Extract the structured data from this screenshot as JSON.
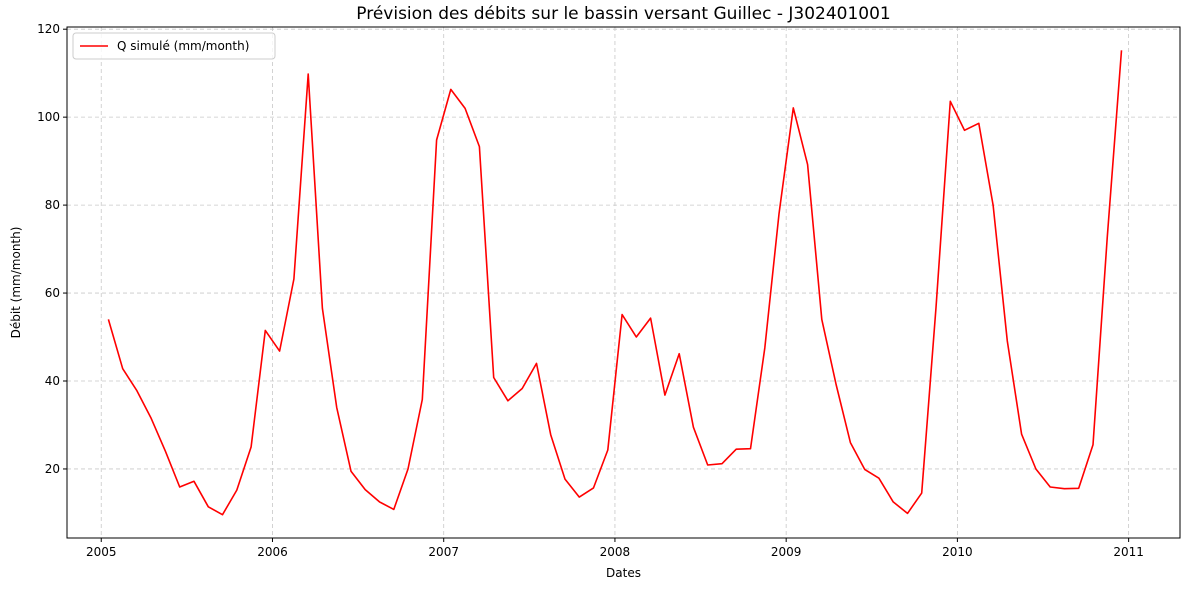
{
  "chart_data": {
    "type": "line",
    "title": "Prévision des débits sur le bassin versant Guillec - J302401001",
    "xlabel": "Dates",
    "ylabel": "Débit (mm/month)",
    "xlim": [
      2004.8,
      2011.3
    ],
    "ylim": [
      4.3,
      120.5
    ],
    "xticks": [
      2005,
      2006,
      2007,
      2008,
      2009,
      2010,
      2011
    ],
    "xtick_labels": [
      "2005",
      "2006",
      "2007",
      "2008",
      "2009",
      "2010",
      "2011"
    ],
    "yticks": [
      20,
      40,
      60,
      80,
      100,
      120
    ],
    "ytick_labels": [
      "20",
      "40",
      "60",
      "80",
      "100",
      "120"
    ],
    "grid": true,
    "legend_position": "top-left",
    "colors": {
      "series": "#ff0000",
      "grid": "#c8c8c8"
    },
    "series": [
      {
        "name": "Q simulé (mm/month)",
        "x": [
          "2005-01",
          "2005-02",
          "2005-03",
          "2005-04",
          "2005-05",
          "2005-06",
          "2005-07",
          "2005-08",
          "2005-09",
          "2005-10",
          "2005-11",
          "2005-12",
          "2006-01",
          "2006-02",
          "2006-03",
          "2006-04",
          "2006-05",
          "2006-06",
          "2006-07",
          "2006-08",
          "2006-09",
          "2006-10",
          "2006-11",
          "2006-12",
          "2007-01",
          "2007-02",
          "2007-03",
          "2007-04",
          "2007-05",
          "2007-06",
          "2007-07",
          "2007-08",
          "2007-09",
          "2007-10",
          "2007-11",
          "2007-12",
          "2008-01",
          "2008-02",
          "2008-03",
          "2008-04",
          "2008-05",
          "2008-06",
          "2008-07",
          "2008-08",
          "2008-09",
          "2008-10",
          "2008-11",
          "2008-12",
          "2009-01",
          "2009-02",
          "2009-03",
          "2009-04",
          "2009-05",
          "2009-06",
          "2009-07",
          "2009-08",
          "2009-09",
          "2009-10",
          "2009-11",
          "2009-12",
          "2010-01",
          "2010-02",
          "2010-03",
          "2010-04",
          "2010-05",
          "2010-06",
          "2010-07",
          "2010-08",
          "2010-09",
          "2010-10",
          "2010-11",
          "2010-12"
        ],
        "values": [
          54.0,
          42.8,
          37.8,
          31.5,
          24.0,
          15.9,
          17.2,
          11.4,
          9.6,
          15.2,
          25.0,
          51.5,
          46.8,
          63.2,
          109.8,
          56.5,
          34.0,
          19.5,
          15.3,
          12.5,
          10.8,
          20.0,
          35.8,
          94.8,
          106.3,
          102.0,
          93.3,
          40.8,
          35.5,
          38.3,
          44.0,
          27.8,
          17.7,
          13.6,
          15.7,
          24.3,
          55.1,
          50.0,
          54.3,
          36.8,
          46.2,
          29.5,
          20.9,
          21.2,
          24.5,
          24.6,
          47.5,
          78.0,
          102.1,
          89.2,
          54.0,
          39.2,
          26.0,
          19.9,
          17.9,
          12.5,
          9.9,
          14.5,
          56.7,
          103.6,
          97.0,
          98.6,
          80.0,
          49.1,
          27.9,
          20.0,
          15.9,
          15.5,
          15.6,
          25.5,
          72.5,
          115.2
        ]
      }
    ]
  }
}
